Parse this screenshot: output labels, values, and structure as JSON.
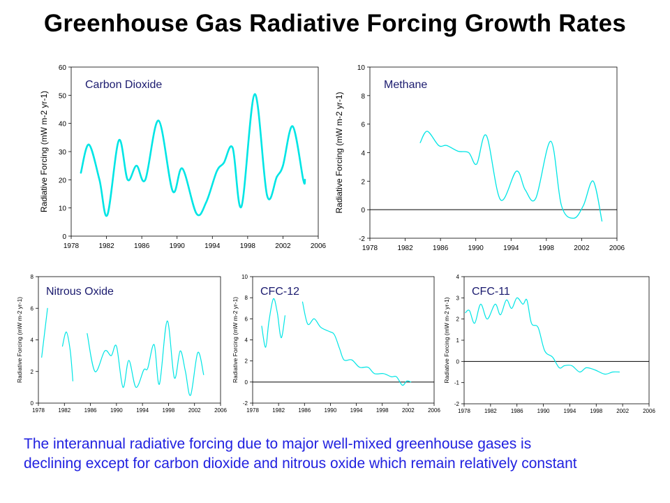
{
  "page": {
    "title": "Greenhouse Gas Radiative Forcing Growth Rates",
    "caption_line1": "The interannual radiative forcing due to major well-mixed greenhouse gases is",
    "caption_line2": "declining except for carbon dioxide and nitrous oxide which remain relatively constant"
  },
  "colors": {
    "series": "#00e5e5",
    "caption": "#2020e0",
    "gas_label": "#1a1a6e"
  },
  "chart_data": [
    {
      "type": "line",
      "title": "Carbon Dioxide",
      "ylabel": "Radiative Forcing (mW m-2 yr-1)",
      "xlim": [
        1978,
        2006
      ],
      "ylim": [
        0,
        60
      ],
      "xticks": [
        "1978",
        "1982",
        "1986",
        "1990",
        "1994",
        "1998",
        "2002",
        "2006"
      ],
      "yticks": [
        "0",
        "10",
        "20",
        "30",
        "40",
        "50",
        "60"
      ],
      "zero_line": false,
      "series": [
        {
          "points": [
            [
              1979.1,
              22.5
            ],
            [
              1980,
              32.5
            ],
            [
              1981.2,
              20
            ],
            [
              1982.1,
              7.5
            ],
            [
              1983.4,
              34
            ],
            [
              1984.4,
              20
            ],
            [
              1985.4,
              25
            ],
            [
              1986.4,
              20
            ],
            [
              1987.9,
              41
            ],
            [
              1989.5,
              16
            ],
            [
              1990.6,
              24
            ],
            [
              1992.2,
              8
            ],
            [
              1993.3,
              12
            ],
            [
              1994.5,
              23
            ],
            [
              1995.3,
              26
            ],
            [
              1996.3,
              31.3
            ],
            [
              1997.3,
              10.5
            ],
            [
              1998.8,
              50.4
            ],
            [
              2000.2,
              14.4
            ],
            [
              2001.3,
              21
            ],
            [
              2002,
              25
            ],
            [
              2003.1,
              39
            ],
            [
              2004.3,
              20
            ],
            [
              2004.5,
              20
            ]
          ]
        }
      ]
    },
    {
      "type": "line",
      "title": "Methane",
      "ylabel": "Radiative Forcing (mW m-2 yr-1)",
      "xlim": [
        1978,
        2006
      ],
      "ylim": [
        -2,
        10
      ],
      "xticks": [
        "1978",
        "1982",
        "1986",
        "1990",
        "1994",
        "1998",
        "2002",
        "2006"
      ],
      "yticks": [
        "-2",
        "0",
        "2",
        "4",
        "6",
        "8",
        "10"
      ],
      "zero_line": true,
      "series": [
        {
          "points": [
            [
              1983.7,
              4.7
            ],
            [
              1984.5,
              5.5
            ],
            [
              1985.8,
              4.5
            ],
            [
              1986.7,
              4.5
            ],
            [
              1988,
              4.1
            ],
            [
              1989.2,
              4.0
            ],
            [
              1990.1,
              3.2
            ],
            [
              1991.2,
              5.2
            ],
            [
              1992.8,
              0.7
            ],
            [
              1994.6,
              2.7
            ],
            [
              1995.6,
              1.4
            ],
            [
              1996.8,
              0.8
            ],
            [
              1998.5,
              4.8
            ],
            [
              1999.7,
              0.3
            ],
            [
              2001.1,
              -0.6
            ],
            [
              2002.2,
              0.3
            ],
            [
              2003.3,
              2.0
            ],
            [
              2004.3,
              -0.8
            ]
          ]
        }
      ]
    },
    {
      "type": "line",
      "title": "Nitrous Oxide",
      "ylabel": "Radiative Forcing (mW m-2 yr-1)",
      "xlim": [
        1978,
        2006
      ],
      "ylim": [
        0,
        8
      ],
      "xticks": [
        "1978",
        "1982",
        "1986",
        "1990",
        "1994",
        "1998",
        "2002",
        "2006"
      ],
      "yticks": [
        "0",
        "2",
        "4",
        "6",
        "8"
      ],
      "zero_line": false,
      "series": [
        {
          "points": [
            [
              1978.5,
              2.9
            ],
            [
              1979.4,
              6.0
            ]
          ]
        },
        {
          "points": [
            [
              1981.7,
              3.6
            ],
            [
              1982.3,
              4.5
            ],
            [
              1982.9,
              3.3
            ],
            [
              1983.3,
              1.4
            ]
          ]
        },
        {
          "points": [
            [
              1985.5,
              4.4
            ],
            [
              1986.7,
              2.0
            ],
            [
              1988.2,
              3.3
            ],
            [
              1989.2,
              3.0
            ],
            [
              1990,
              3.6
            ],
            [
              1991,
              1.0
            ],
            [
              1991.9,
              2.7
            ],
            [
              1993,
              1.0
            ],
            [
              1994.2,
              2.1
            ],
            [
              1994.8,
              2.2
            ],
            [
              1995.8,
              3.7
            ],
            [
              1996.6,
              1.2
            ],
            [
              1997.8,
              5.2
            ],
            [
              1998.9,
              1.6
            ],
            [
              1999.8,
              3.3
            ],
            [
              2000.6,
              2.0
            ],
            [
              2001.4,
              0.5
            ],
            [
              2002.5,
              3.2
            ],
            [
              2003.4,
              1.8
            ]
          ]
        }
      ]
    },
    {
      "type": "line",
      "title": "CFC-12",
      "ylabel": "Radiative Forcing (mW m-2 yr-1)",
      "xlim": [
        1978,
        2006
      ],
      "ylim": [
        -2,
        10
      ],
      "xticks": [
        "1978",
        "1982",
        "1986",
        "1990",
        "1994",
        "1998",
        "2002",
        "2006"
      ],
      "yticks": [
        "-2",
        "0",
        "2",
        "4",
        "6",
        "8",
        "10"
      ],
      "zero_line": true,
      "series": [
        {
          "points": [
            [
              1979.4,
              5.3
            ],
            [
              1980,
              3.3
            ],
            [
              1980.5,
              5.7
            ],
            [
              1981.2,
              7.9
            ],
            [
              1981.8,
              6.6
            ],
            [
              1982.4,
              4.2
            ],
            [
              1983,
              6.3
            ]
          ]
        },
        {
          "points": [
            [
              1985.7,
              7.6
            ],
            [
              1986.5,
              5.5
            ],
            [
              1987.5,
              6.0
            ],
            [
              1988.5,
              5.2
            ],
            [
              1989.8,
              4.8
            ],
            [
              1990.6,
              4.5
            ],
            [
              1991.4,
              3.2
            ],
            [
              1992.1,
              2.1
            ],
            [
              1993.3,
              2.1
            ],
            [
              1994.5,
              1.4
            ],
            [
              1995.8,
              1.4
            ],
            [
              1996.8,
              0.8
            ],
            [
              1998.2,
              0.8
            ],
            [
              1999.4,
              0.5
            ],
            [
              2000.2,
              0.5
            ],
            [
              2001.1,
              -0.3
            ],
            [
              2001.8,
              0.1
            ],
            [
              2002.4,
              0.0
            ]
          ]
        }
      ]
    },
    {
      "type": "line",
      "title": "CFC-11",
      "ylabel": "Radiative Forcing (mW m-2 yr-1)",
      "xlim": [
        1978,
        2006
      ],
      "ylim": [
        -2,
        4
      ],
      "xticks": [
        "1978",
        "1982",
        "1986",
        "1990",
        "1994",
        "1998",
        "2002",
        "2006"
      ],
      "yticks": [
        "-2",
        "-1",
        "0",
        "1",
        "2",
        "3",
        "4"
      ],
      "zero_line": true,
      "series": [
        {
          "points": [
            [
              1978.2,
              2.3
            ],
            [
              1978.8,
              2.4
            ],
            [
              1979.6,
              1.8
            ],
            [
              1980.5,
              2.7
            ],
            [
              1981.5,
              2.0
            ],
            [
              1982.7,
              2.7
            ],
            [
              1983.5,
              2.2
            ],
            [
              1984.4,
              2.9
            ],
            [
              1985.2,
              2.5
            ],
            [
              1986,
              3.0
            ],
            [
              1986.9,
              2.7
            ],
            [
              1987.5,
              2.9
            ],
            [
              1988.2,
              1.8
            ],
            [
              1989.2,
              1.6
            ],
            [
              1990.2,
              0.5
            ],
            [
              1991.4,
              0.2
            ],
            [
              1992.4,
              -0.3
            ],
            [
              1993.2,
              -0.2
            ],
            [
              1994.3,
              -0.2
            ],
            [
              1995.5,
              -0.5
            ],
            [
              1996.5,
              -0.3
            ],
            [
              1997.8,
              -0.4
            ],
            [
              1999.3,
              -0.6
            ],
            [
              2000.5,
              -0.5
            ],
            [
              2001.5,
              -0.5
            ]
          ]
        }
      ]
    }
  ]
}
